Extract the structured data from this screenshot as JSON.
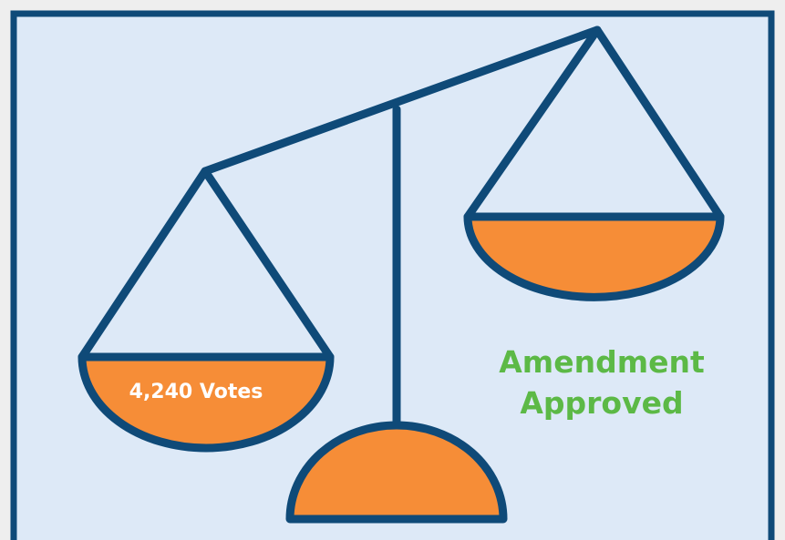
{
  "left_pan": {
    "label": "4,240 Votes"
  },
  "result": {
    "lines": [
      "Amendment",
      "Approved"
    ]
  }
}
